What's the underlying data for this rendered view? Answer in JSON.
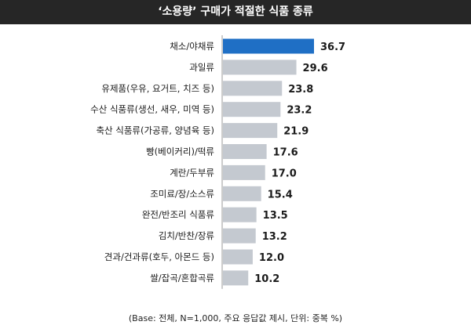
{
  "chart_data": {
    "type": "bar",
    "orientation": "horizontal",
    "title": "‘소용량’ 구매가 적절한 식품 종류",
    "categories": [
      "채소/야채류",
      "과일류",
      "유제품(우유, 요거트, 치즈 등)",
      "수산 식품류(생선, 새우, 미역 등)",
      "축산 식품류(가공류, 양념육 등)",
      "빵(베이커리)/떡류",
      "계란/두부류",
      "조미료/장/소스류",
      "완전/반조리 식품류",
      "김치/반찬/장류",
      "견과/건과류(호두, 아몬드 등)",
      "쌀/잡곡/혼합곡류"
    ],
    "values": [
      36.7,
      29.6,
      23.8,
      23.2,
      21.9,
      17.6,
      17.0,
      15.4,
      13.5,
      13.2,
      12.0,
      10.2
    ],
    "value_labels": [
      "36.7",
      "29.6",
      "23.8",
      "23.2",
      "21.9",
      "17.6",
      "17.0",
      "15.4",
      "13.5",
      "13.2",
      "12.0",
      "10.2"
    ],
    "highlight_index": 0,
    "colors": {
      "highlight": "#1f6fc5",
      "bar": "#c4c9d0",
      "title_bg": "#262626",
      "text": "#1a1a1a"
    },
    "xlim": [
      0,
      40
    ],
    "grid": false,
    "legend": "none"
  },
  "footnote": "(Base: 전체, N=1,000, 주요 응답값 제시, 단위: 중복 %)"
}
